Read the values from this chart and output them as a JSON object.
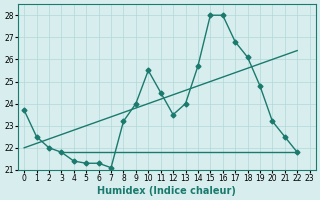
{
  "x_main": [
    0,
    1,
    2,
    3,
    4,
    5,
    6,
    7,
    8,
    9,
    10,
    11,
    12,
    13,
    14,
    15,
    16,
    17,
    18,
    19,
    20,
    21,
    22
  ],
  "y_main": [
    23.7,
    22.5,
    22.0,
    21.8,
    21.4,
    21.3,
    21.3,
    21.1,
    23.2,
    24.0,
    25.5,
    24.5,
    23.5,
    24.0,
    25.7,
    28.0,
    28.0,
    26.8,
    26.1,
    24.8,
    23.2,
    22.5,
    21.8
  ],
  "x_flat": [
    3,
    4,
    5,
    6,
    7,
    8,
    9,
    10,
    11,
    12,
    13,
    14,
    15,
    16,
    17,
    18,
    19,
    20,
    21,
    22
  ],
  "y_flat": [
    21.8,
    21.8,
    21.8,
    21.8,
    21.8,
    21.8,
    21.8,
    21.8,
    21.8,
    21.8,
    21.8,
    21.8,
    21.8,
    21.8,
    21.8,
    21.8,
    21.8,
    21.8,
    21.8,
    21.8
  ],
  "x_trend": [
    0,
    2,
    4,
    6,
    8,
    10,
    12,
    14,
    16,
    18,
    20,
    22
  ],
  "y_trend": [
    22.0,
    22.4,
    22.8,
    23.2,
    23.6,
    24.0,
    24.4,
    24.8,
    25.2,
    25.6,
    26.0,
    26.4
  ],
  "line_color": "#1a7a6e",
  "bg_color": "#d8eeee",
  "grid_color": "#b0d8d8",
  "xlabel": "Humidex (Indice chaleur)",
  "ylim": [
    21,
    28.5
  ],
  "xlim": [
    -0.5,
    23.5
  ],
  "yticks": [
    21,
    22,
    23,
    24,
    25,
    26,
    27,
    28
  ],
  "xticks": [
    0,
    1,
    2,
    3,
    4,
    5,
    6,
    7,
    8,
    9,
    10,
    11,
    12,
    13,
    14,
    15,
    16,
    17,
    18,
    19,
    20,
    21,
    22,
    23
  ]
}
